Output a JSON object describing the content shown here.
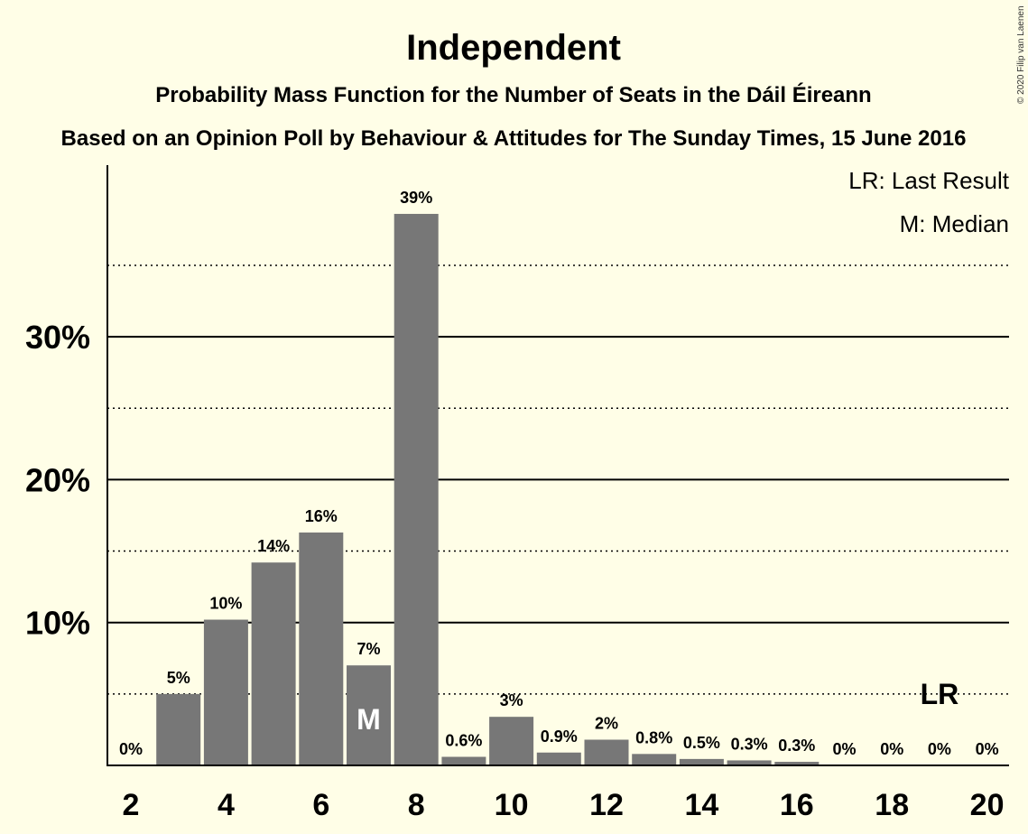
{
  "chart_data": {
    "type": "bar",
    "title": "Independent",
    "subtitle": "Probability Mass Function for the Number of Seats in the Dáil Éireann",
    "subtitle2": "Based on an Opinion Poll by Behaviour & Attitudes for The Sunday Times, 15 June 2016",
    "copyright": "© 2020 Filip van Laenen",
    "legend": [
      "LR: Last Result",
      "M: Median"
    ],
    "legend_position": "top-right",
    "x": [
      2,
      3,
      4,
      5,
      6,
      7,
      8,
      9,
      10,
      11,
      12,
      13,
      14,
      15,
      16,
      17,
      18,
      19,
      20
    ],
    "values": [
      0,
      5.0,
      10.2,
      14.2,
      16.3,
      7.0,
      38.6,
      0.6,
      3.4,
      0.9,
      1.8,
      0.8,
      0.45,
      0.35,
      0.25,
      0,
      0,
      0,
      0
    ],
    "labels": [
      "0%",
      "5%",
      "10%",
      "14%",
      "16%",
      "7%",
      "39%",
      "0.6%",
      "3%",
      "0.9%",
      "2%",
      "0.8%",
      "0.5%",
      "0.3%",
      "0.3%",
      "0%",
      "0%",
      "0%",
      "0%"
    ],
    "x_tick_labels": [
      "2",
      "4",
      "6",
      "8",
      "10",
      "12",
      "14",
      "16",
      "18",
      "20"
    ],
    "y_tick_labels": [
      "10%",
      "20%",
      "30%"
    ],
    "y_ticks": [
      10,
      20,
      30
    ],
    "y_minor_ticks": [
      5,
      15,
      25,
      35
    ],
    "ylim": [
      0,
      42
    ],
    "median_seat": 7,
    "median_label": "M",
    "last_result_seat": 19,
    "last_result_label": "LR",
    "colors": {
      "bar": "#777777",
      "background": "#FFFEE7"
    }
  }
}
